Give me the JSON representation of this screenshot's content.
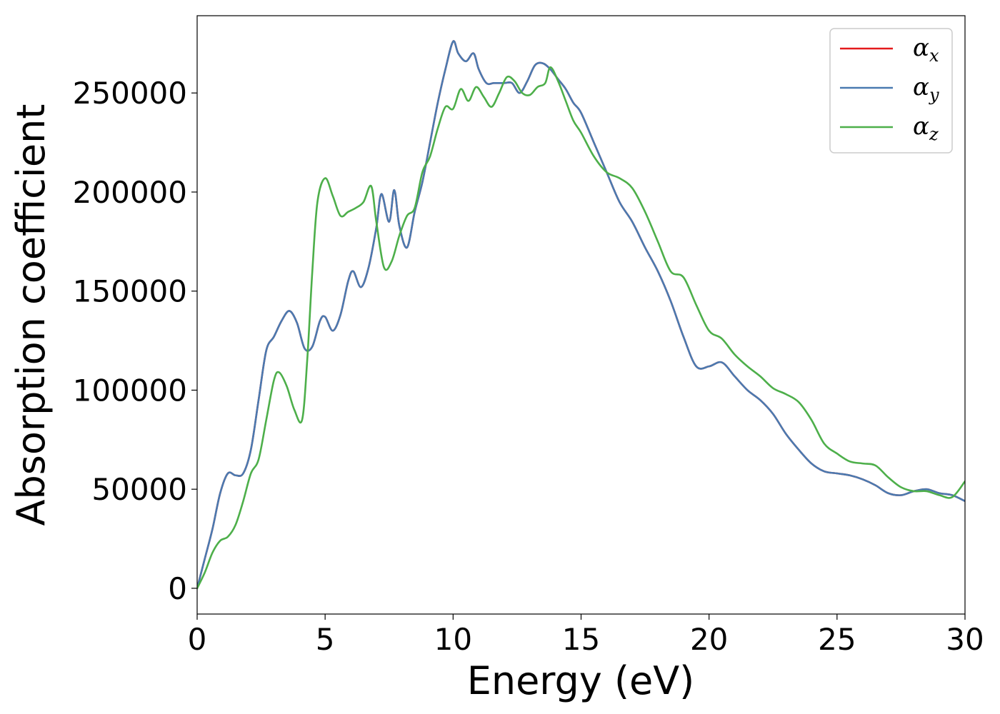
{
  "chart_data": {
    "type": "line",
    "title": "",
    "xlabel": "Energy (eV)",
    "ylabel": "Absorption coefficient",
    "xlim": [
      0,
      30
    ],
    "ylim": [
      -13000,
      289000
    ],
    "xticks": [
      0,
      5,
      10,
      15,
      20,
      25,
      30
    ],
    "xtick_labels": [
      "0",
      "5",
      "10",
      "15",
      "20",
      "25",
      "30"
    ],
    "yticks": [
      0,
      50000,
      100000,
      150000,
      200000,
      250000
    ],
    "ytick_labels": [
      "0",
      "50000",
      "100000",
      "150000",
      "200000",
      "250000"
    ],
    "grid": false,
    "legend_position": "top-right",
    "series": [
      {
        "name": "α_x",
        "symbol": "α",
        "subscript": "x",
        "color": "#e41a1c",
        "x": [
          0,
          0.3,
          0.6,
          0.9,
          1.2,
          1.5,
          1.8,
          2.1,
          2.4,
          2.7,
          3.0,
          3.3,
          3.6,
          3.9,
          4.2,
          4.5,
          4.8,
          5.0,
          5.3,
          5.6,
          5.9,
          6.1,
          6.4,
          6.7,
          7.0,
          7.2,
          7.5,
          7.7,
          7.9,
          8.2,
          8.5,
          8.8,
          9.1,
          9.4,
          9.7,
          10.0,
          10.2,
          10.5,
          10.8,
          11.0,
          11.3,
          11.6,
          12.0,
          12.3,
          12.6,
          12.9,
          13.2,
          13.5,
          13.8,
          14.1,
          14.4,
          14.7,
          15.0,
          15.5,
          16.0,
          16.5,
          17.0,
          17.5,
          18.0,
          18.5,
          19.0,
          19.5,
          20.0,
          20.5,
          21.0,
          21.5,
          22.0,
          22.5,
          23.0,
          23.5,
          24.0,
          24.5,
          25.0,
          25.5,
          26.0,
          26.5,
          27.0,
          27.5,
          28.0,
          28.5,
          29.0,
          29.5,
          30.0
        ],
        "values": [
          0,
          15000,
          30000,
          48000,
          58000,
          57000,
          58000,
          70000,
          95000,
          120000,
          127000,
          135000,
          140000,
          134000,
          121000,
          122000,
          135000,
          137000,
          130000,
          138000,
          155000,
          160000,
          152000,
          162000,
          182000,
          199000,
          185000,
          201000,
          183000,
          172000,
          190000,
          205000,
          225000,
          245000,
          262000,
          276000,
          270000,
          266000,
          270000,
          262000,
          255000,
          255000,
          255000,
          255000,
          250000,
          256000,
          264000,
          265000,
          262000,
          257000,
          252000,
          245000,
          240000,
          225000,
          210000,
          195000,
          185000,
          172000,
          160000,
          145000,
          127000,
          112000,
          112000,
          114000,
          107000,
          100000,
          95000,
          88000,
          78000,
          70000,
          63000,
          59000,
          58000,
          57000,
          55000,
          52000,
          48000,
          47000,
          49000,
          50000,
          48000,
          47000,
          44000
        ]
      },
      {
        "name": "α_y",
        "symbol": "α",
        "subscript": "y",
        "color": "#4a7ab0",
        "x": [
          0,
          0.3,
          0.6,
          0.9,
          1.2,
          1.5,
          1.8,
          2.1,
          2.4,
          2.7,
          3.0,
          3.3,
          3.6,
          3.9,
          4.2,
          4.5,
          4.8,
          5.0,
          5.3,
          5.6,
          5.9,
          6.1,
          6.4,
          6.7,
          7.0,
          7.2,
          7.5,
          7.7,
          7.9,
          8.2,
          8.5,
          8.8,
          9.1,
          9.4,
          9.7,
          10.0,
          10.2,
          10.5,
          10.8,
          11.0,
          11.3,
          11.6,
          12.0,
          12.3,
          12.6,
          12.9,
          13.2,
          13.5,
          13.8,
          14.1,
          14.4,
          14.7,
          15.0,
          15.5,
          16.0,
          16.5,
          17.0,
          17.5,
          18.0,
          18.5,
          19.0,
          19.5,
          20.0,
          20.5,
          21.0,
          21.5,
          22.0,
          22.5,
          23.0,
          23.5,
          24.0,
          24.5,
          25.0,
          25.5,
          26.0,
          26.5,
          27.0,
          27.5,
          28.0,
          28.5,
          29.0,
          29.5,
          30.0
        ],
        "values": [
          0,
          15000,
          30000,
          48000,
          58000,
          57000,
          58000,
          70000,
          95000,
          120000,
          127000,
          135000,
          140000,
          134000,
          121000,
          122000,
          135000,
          137000,
          130000,
          138000,
          155000,
          160000,
          152000,
          162000,
          182000,
          199000,
          185000,
          201000,
          183000,
          172000,
          190000,
          205000,
          225000,
          245000,
          262000,
          276000,
          270000,
          266000,
          270000,
          262000,
          255000,
          255000,
          255000,
          255000,
          250000,
          256000,
          264000,
          265000,
          262000,
          257000,
          252000,
          245000,
          240000,
          225000,
          210000,
          195000,
          185000,
          172000,
          160000,
          145000,
          127000,
          112000,
          112000,
          114000,
          107000,
          100000,
          95000,
          88000,
          78000,
          70000,
          63000,
          59000,
          58000,
          57000,
          55000,
          52000,
          48000,
          47000,
          49000,
          50000,
          48000,
          47000,
          44000
        ]
      },
      {
        "name": "α_z",
        "symbol": "α",
        "subscript": "z",
        "color": "#4daf4a",
        "x": [
          0,
          0.3,
          0.6,
          0.9,
          1.2,
          1.5,
          1.8,
          2.1,
          2.4,
          2.7,
          3.0,
          3.2,
          3.5,
          3.8,
          4.1,
          4.3,
          4.5,
          4.7,
          5.0,
          5.3,
          5.6,
          5.9,
          6.2,
          6.5,
          6.8,
          7.0,
          7.3,
          7.6,
          7.9,
          8.2,
          8.5,
          8.8,
          9.1,
          9.4,
          9.7,
          10.0,
          10.3,
          10.6,
          10.9,
          11.2,
          11.5,
          11.8,
          12.1,
          12.4,
          12.7,
          13.0,
          13.3,
          13.6,
          13.8,
          14.1,
          14.4,
          14.7,
          15.0,
          15.5,
          16.0,
          16.5,
          17.0,
          17.5,
          18.0,
          18.5,
          19.0,
          19.5,
          20.0,
          20.5,
          21.0,
          21.5,
          22.0,
          22.5,
          23.0,
          23.5,
          24.0,
          24.5,
          25.0,
          25.5,
          26.0,
          26.5,
          27.0,
          27.5,
          28.0,
          28.5,
          29.0,
          29.5,
          30.0
        ],
        "values": [
          0,
          8000,
          18000,
          24000,
          26000,
          32000,
          44000,
          58000,
          65000,
          85000,
          105000,
          109000,
          102000,
          90000,
          85000,
          115000,
          160000,
          195000,
          207000,
          198000,
          188000,
          190000,
          192000,
          195000,
          203000,
          185000,
          162000,
          165000,
          178000,
          188000,
          192000,
          210000,
          218000,
          232000,
          243000,
          242000,
          252000,
          246000,
          253000,
          248000,
          243000,
          250000,
          258000,
          256000,
          250000,
          249000,
          253000,
          255000,
          263000,
          256000,
          246000,
          236000,
          230000,
          218000,
          210000,
          207000,
          202000,
          190000,
          175000,
          160000,
          157000,
          143000,
          130000,
          126000,
          118000,
          112000,
          107000,
          101000,
          98000,
          94000,
          85000,
          73000,
          68000,
          64000,
          63000,
          62000,
          56000,
          51000,
          49000,
          49000,
          47000,
          46000,
          54000
        ]
      }
    ]
  }
}
